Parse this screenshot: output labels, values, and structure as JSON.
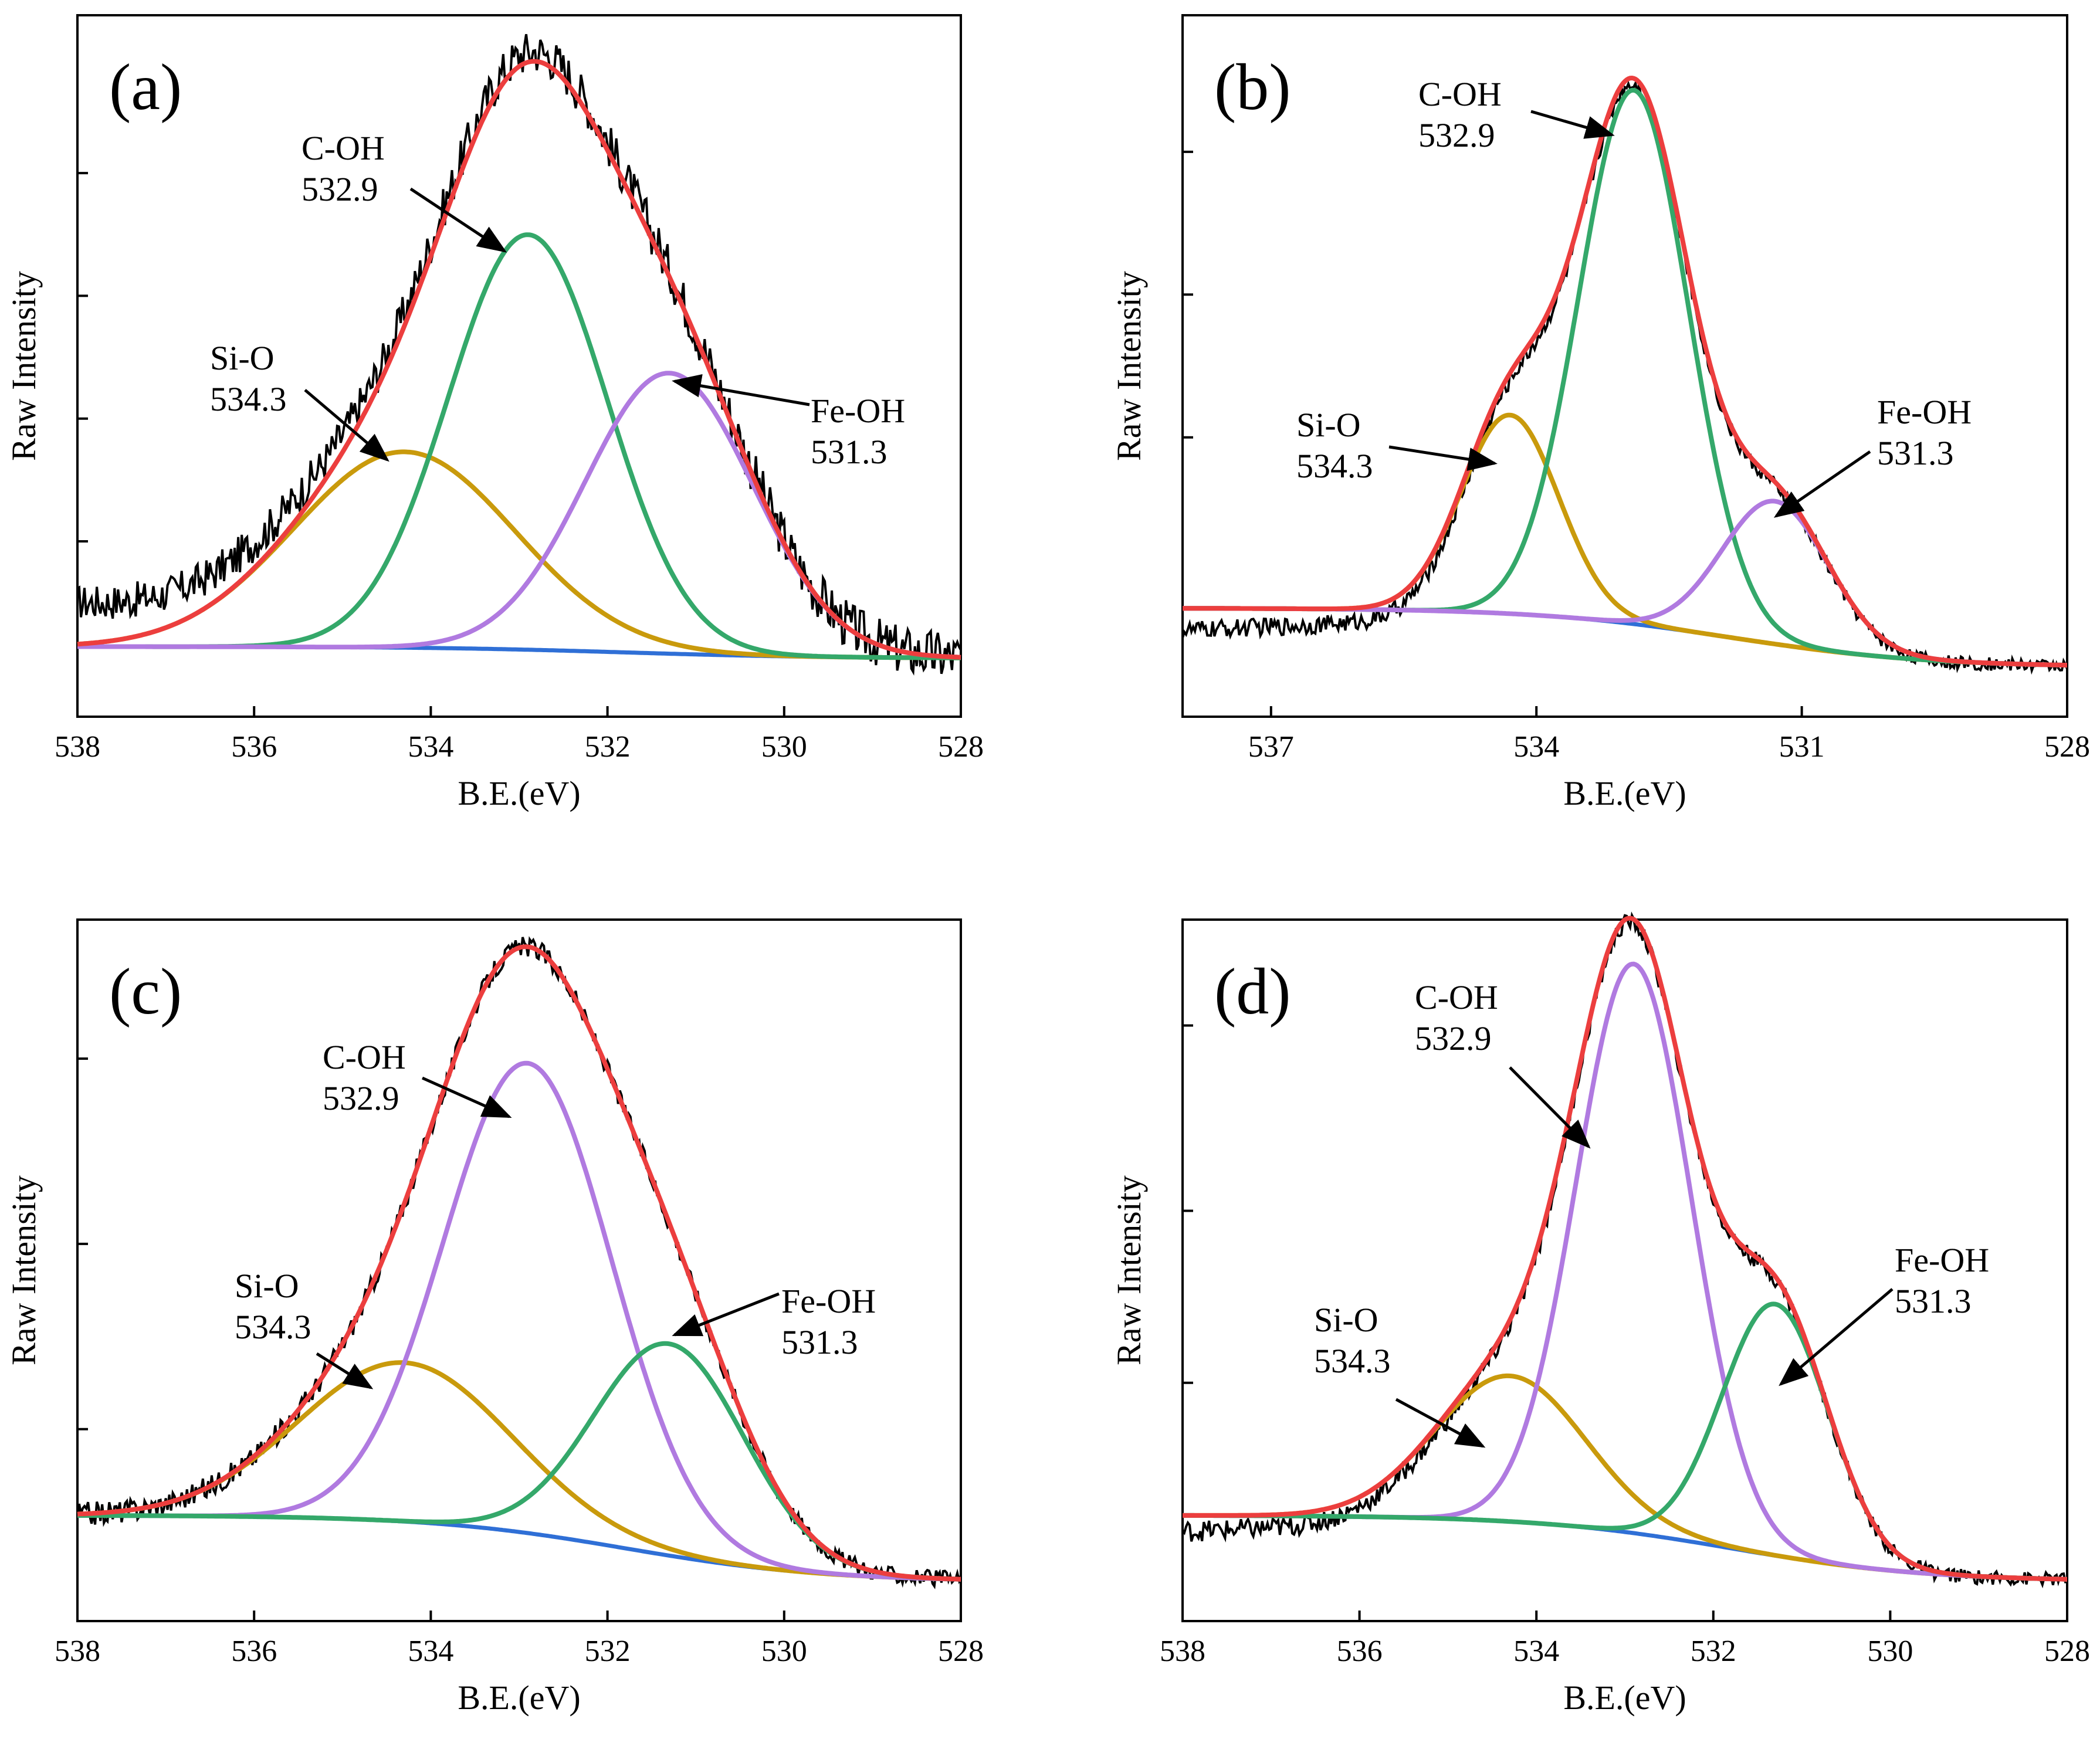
{
  "figure": {
    "colors": {
      "raw": "#000000",
      "envelope": "#ec3e3e",
      "background": "#2f6fd6",
      "gold": "#c99a0c",
      "green": "#34a86a",
      "purple": "#b07ae0"
    }
  },
  "chart_data": [
    {
      "id": "a",
      "type": "line",
      "panel_label": "(a)",
      "xlabel": "B.E.(eV)",
      "ylabel": "Raw Intensity",
      "xlim": [
        538,
        528
      ],
      "ylim": [
        -0.1,
        1.1
      ],
      "xticks": [
        "538",
        "536",
        "534",
        "532",
        "530",
        "528"
      ],
      "ytick_values": [
        0.2,
        0.41,
        0.62,
        0.83
      ],
      "background": {
        "start": 0.02,
        "end": 0.0
      },
      "raw_noise": {
        "low_be_amp": 0.045,
        "high_be_amp": 0.03,
        "shoulder_start": 0.06,
        "shoulder_end": 0.13
      },
      "series": [
        {
          "name": "Si-O",
          "center": 534.3,
          "height": 0.335,
          "width": 1.25,
          "color": "gold"
        },
        {
          "name": "C-OH",
          "center": 532.9,
          "height": 0.71,
          "width": 0.9,
          "color": "green"
        },
        {
          "name": "Fe-OH",
          "center": 531.3,
          "height": 0.48,
          "width": 0.95,
          "color": "purple"
        }
      ],
      "annotations": [
        {
          "label": "C-OH",
          "value": "532.9",
          "peak": "C-OH"
        },
        {
          "label": "Si-O",
          "value": "534.3",
          "peak": "Si-O"
        },
        {
          "label": "Fe-OH",
          "value": "531.3",
          "peak": "Fe-OH"
        }
      ]
    },
    {
      "id": "b",
      "type": "line",
      "panel_label": "(b)",
      "xlabel": "B.E.(eV)",
      "ylabel": "Raw Intensity",
      "xlim": [
        538,
        528
      ],
      "ylim": [
        -0.08,
        1.05
      ],
      "xticks": [
        "537",
        "534",
        "531",
        "528"
      ],
      "xtick_values": [
        537,
        534,
        531,
        528
      ],
      "ytick_values": [
        0.37,
        0.6,
        0.83
      ],
      "background": {
        "start": 0.095,
        "end": 0.0
      },
      "raw_noise": {
        "low_be_amp": 0.01,
        "high_be_amp": 0.015,
        "shoulder_start": -0.03,
        "shoulder_end": 0.0
      },
      "series": [
        {
          "name": "Si-O",
          "center": 534.3,
          "height": 0.32,
          "width": 0.55,
          "color": "gold"
        },
        {
          "name": "C-OH",
          "center": 532.9,
          "height": 0.86,
          "width": 0.62,
          "color": "green"
        },
        {
          "name": "Fe-OH",
          "center": 531.3,
          "height": 0.23,
          "width": 0.6,
          "color": "purple"
        }
      ],
      "annotations": [
        {
          "label": "C-OH",
          "value": "532.9",
          "peak": "C-OH"
        },
        {
          "label": "Si-O",
          "value": "534.3",
          "peak": "Si-O"
        },
        {
          "label": "Fe-OH",
          "value": "531.3",
          "peak": "Fe-OH"
        }
      ]
    },
    {
      "id": "c",
      "type": "line",
      "panel_label": "(c)",
      "xlabel": "B.E.(eV)",
      "ylabel": "Raw Intensity",
      "xlim": [
        538,
        528
      ],
      "ylim": [
        -0.06,
        1.0
      ],
      "xticks": [
        "538",
        "536",
        "534",
        "532",
        "530",
        "528"
      ],
      "ytick_values": [
        0.23,
        0.51,
        0.79
      ],
      "background": {
        "start": 0.1,
        "end": 0.0
      },
      "raw_noise": {
        "low_be_amp": 0.012,
        "high_be_amp": 0.018,
        "shoulder_start": 0.0,
        "shoulder_end": 0.01
      },
      "series": [
        {
          "name": "Si-O",
          "center": 534.3,
          "height": 0.24,
          "width": 1.2,
          "color": "gold"
        },
        {
          "name": "C-OH",
          "center": 532.9,
          "height": 0.71,
          "width": 0.95,
          "color": "purple"
        },
        {
          "name": "Fe-OH",
          "center": 531.3,
          "height": 0.32,
          "width": 0.85,
          "color": "green"
        }
      ],
      "annotations": [
        {
          "label": "C-OH",
          "value": "532.9",
          "peak": "C-OH"
        },
        {
          "label": "Si-O",
          "value": "534.3",
          "peak": "Si-O"
        },
        {
          "label": "Fe-OH",
          "value": "531.3",
          "peak": "Fe-OH"
        }
      ]
    },
    {
      "id": "d",
      "type": "line",
      "panel_label": "(d)",
      "xlabel": "B.E.(eV)",
      "ylabel": "Raw Intensity",
      "xlim": [
        538,
        528
      ],
      "ylim": [
        -0.06,
        1.0
      ],
      "xticks": [
        "538",
        "536",
        "534",
        "532",
        "530",
        "528"
      ],
      "ytick_values": [
        0.3,
        0.56,
        0.84
      ],
      "background": {
        "start": 0.1,
        "end": 0.0
      },
      "raw_noise": {
        "low_be_amp": 0.01,
        "high_be_amp": 0.016,
        "shoulder_start": -0.02,
        "shoulder_end": 0.03
      },
      "series": [
        {
          "name": "Si-O",
          "center": 534.3,
          "height": 0.22,
          "width": 0.85,
          "color": "gold"
        },
        {
          "name": "C-OH",
          "center": 532.9,
          "height": 0.86,
          "width": 0.65,
          "color": "purple"
        },
        {
          "name": "Fe-OH",
          "center": 531.3,
          "height": 0.38,
          "width": 0.6,
          "color": "green"
        }
      ],
      "annotations": [
        {
          "label": "C-OH",
          "value": "532.9",
          "peak": "C-OH"
        },
        {
          "label": "Si-O",
          "value": "534.3",
          "peak": "Si-O"
        },
        {
          "label": "Fe-OH",
          "value": "531.3",
          "peak": "Fe-OH"
        }
      ]
    }
  ]
}
